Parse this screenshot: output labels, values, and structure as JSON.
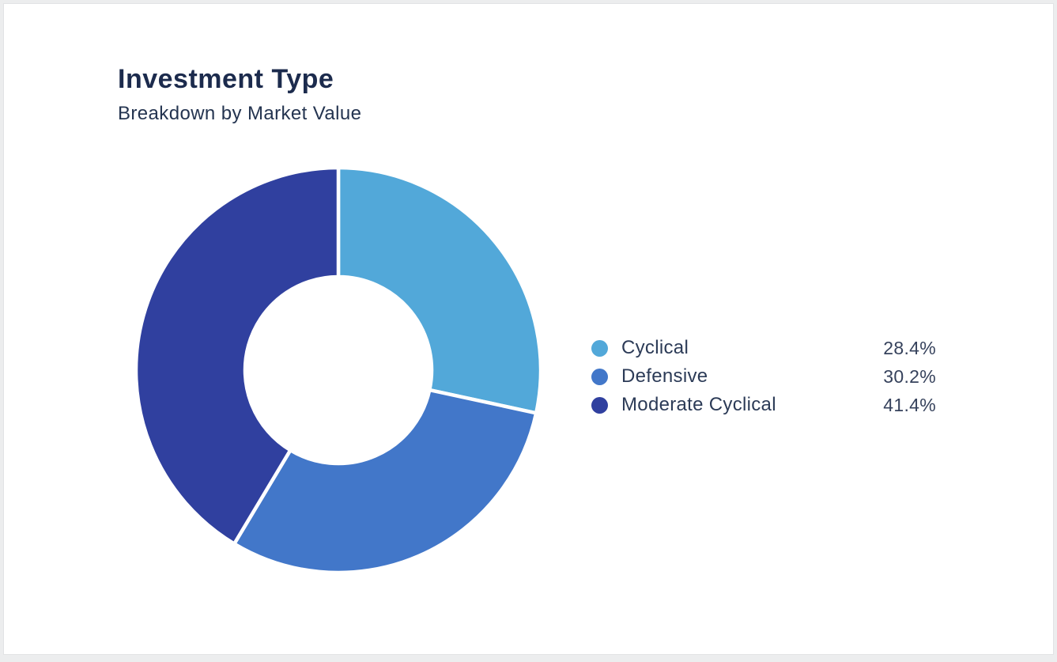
{
  "card": {
    "title": "Investment Type",
    "subtitle": "Breakdown by Market Value"
  },
  "chart_data": {
    "type": "pie",
    "variant": "donut",
    "title": "Investment Type",
    "subtitle": "Breakdown by Market Value",
    "categories": [
      "Cyclical",
      "Defensive",
      "Moderate Cyclical"
    ],
    "values": [
      28.4,
      30.2,
      41.4
    ],
    "unit": "%",
    "colors": [
      "#52A8D9",
      "#4277C9",
      "#30409F"
    ],
    "start_angle_deg": 0,
    "direction": "clockwise",
    "inner_radius_ratio": 0.46,
    "legend": {
      "position": "right",
      "items": [
        {
          "label": "Cyclical",
          "value": "28.4%",
          "color": "#52A8D9"
        },
        {
          "label": "Defensive",
          "value": "30.2%",
          "color": "#4277C9"
        },
        {
          "label": "Moderate Cyclical",
          "value": "41.4%",
          "color": "#30409F"
        }
      ]
    }
  }
}
